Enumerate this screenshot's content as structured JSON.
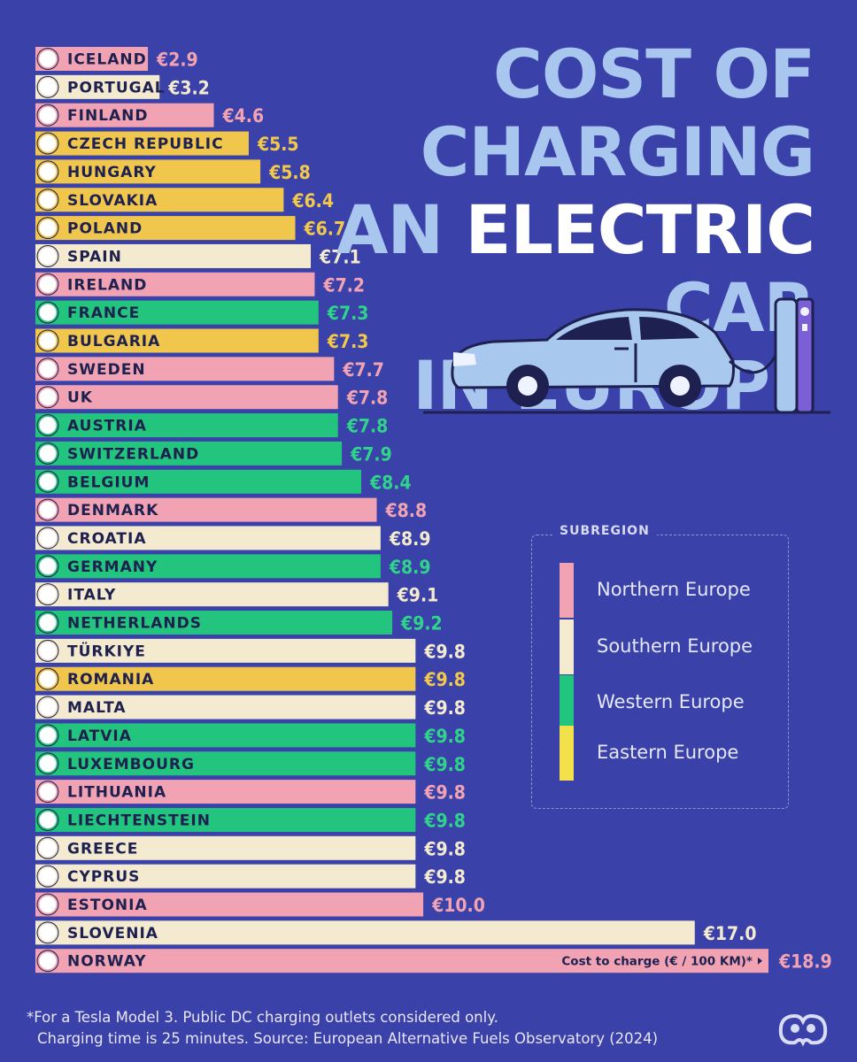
{
  "title": {
    "line1": "COST OF CHARGING",
    "line2_pre": "AN ",
    "line2_hl": "ELECTRIC",
    "line2_post": " CAR",
    "line3": "IN EUROPE"
  },
  "legend": {
    "title": "SUBREGION",
    "items": [
      {
        "label": "Northern Europe",
        "color": "#f2a3b3"
      },
      {
        "label": "Southern Europe",
        "color": "#f4ead0"
      },
      {
        "label": "Western Europe",
        "color": "#22c47e"
      },
      {
        "label": "Eastern Europe",
        "color": "#f2e14a"
      }
    ]
  },
  "colors": {
    "background": "#3a41a8",
    "northern": "#f2a3b3",
    "southern": "#f4ead0",
    "western": "#22c47e",
    "eastern": "#f0c64c"
  },
  "axis_note": "Cost to charge (€ / 100 KM)*",
  "footnote": {
    "line1": "*For a Tesla Model 3. Public DC charging outlets considered only.",
    "line2": "Charging time is 25 minutes. Source: European Alternative Fuels Observatory (2024)"
  },
  "chart_data": {
    "type": "bar",
    "orientation": "horizontal",
    "title": "COST OF CHARGING AN ELECTRIC CAR IN EUROPE",
    "xlabel": "Cost to charge (€ / 100 KM)*",
    "ylabel": "",
    "value_prefix": "€",
    "xlim": [
      0,
      18.9
    ],
    "grid": false,
    "legend_position": "right",
    "categories": [
      "ICELAND",
      "PORTUGAL",
      "FINLAND",
      "CZECH REPUBLIC",
      "HUNGARY",
      "SLOVAKIA",
      "POLAND",
      "SPAIN",
      "IRELAND",
      "FRANCE",
      "BULGARIA",
      "SWEDEN",
      "UK",
      "AUSTRIA",
      "SWITZERLAND",
      "BELGIUM",
      "DENMARK",
      "CROATIA",
      "GERMANY",
      "ITALY",
      "NETHERLANDS",
      "TÜRKIYE",
      "ROMANIA",
      "MALTA",
      "LATVIA",
      "LUXEMBOURG",
      "LITHUANIA",
      "LIECHTENSTEIN",
      "GREECE",
      "CYPRUS",
      "ESTONIA",
      "SLOVENIA",
      "NORWAY"
    ],
    "values": [
      2.9,
      3.2,
      4.6,
      5.5,
      5.8,
      6.4,
      6.7,
      7.1,
      7.2,
      7.3,
      7.3,
      7.7,
      7.8,
      7.8,
      7.9,
      8.4,
      8.8,
      8.9,
      8.9,
      9.1,
      9.2,
      9.8,
      9.8,
      9.8,
      9.8,
      9.8,
      9.8,
      9.8,
      9.8,
      9.8,
      10.0,
      17.0,
      18.9
    ],
    "labels": [
      "€2.9",
      "€3.2",
      "€4.6",
      "€5.5",
      "€5.8",
      "€6.4",
      "€6.7",
      "€7.1",
      "€7.2",
      "€7.3",
      "€7.3",
      "€7.7",
      "€7.8",
      "€7.8",
      "€7.9",
      "€8.4",
      "€8.8",
      "€8.9",
      "€8.9",
      "€9.1",
      "€9.2",
      "€9.8",
      "€9.8",
      "€9.8",
      "€9.8",
      "€9.8",
      "€9.8",
      "€9.8",
      "€9.8",
      "€9.8",
      "€10.0",
      "€17.0",
      "€18.9"
    ],
    "subregions": [
      "Northern Europe",
      "Southern Europe",
      "Northern Europe",
      "Eastern Europe",
      "Eastern Europe",
      "Eastern Europe",
      "Eastern Europe",
      "Southern Europe",
      "Northern Europe",
      "Western Europe",
      "Eastern Europe",
      "Northern Europe",
      "Northern Europe",
      "Western Europe",
      "Western Europe",
      "Western Europe",
      "Northern Europe",
      "Southern Europe",
      "Western Europe",
      "Southern Europe",
      "Western Europe",
      "Southern Europe",
      "Eastern Europe",
      "Southern Europe",
      "Western Europe",
      "Western Europe",
      "Northern Europe",
      "Western Europe",
      "Southern Europe",
      "Southern Europe",
      "Northern Europe",
      "Southern Europe",
      "Northern Europe"
    ],
    "flag_icons": [
      "iceland-flag",
      "portugal-flag",
      "finland-flag",
      "czech-republic-flag",
      "hungary-flag",
      "slovakia-flag",
      "poland-flag",
      "spain-flag",
      "ireland-flag",
      "france-flag",
      "bulgaria-flag",
      "sweden-flag",
      "uk-flag",
      "austria-flag",
      "switzerland-flag",
      "belgium-flag",
      "denmark-flag",
      "croatia-flag",
      "germany-flag",
      "italy-flag",
      "netherlands-flag",
      "turkiye-flag",
      "romania-flag",
      "malta-flag",
      "latvia-flag",
      "luxembourg-flag",
      "lithuania-flag",
      "liechtenstein-flag",
      "greece-flag",
      "cyprus-flag",
      "estonia-flag",
      "slovenia-flag",
      "norway-flag"
    ]
  }
}
